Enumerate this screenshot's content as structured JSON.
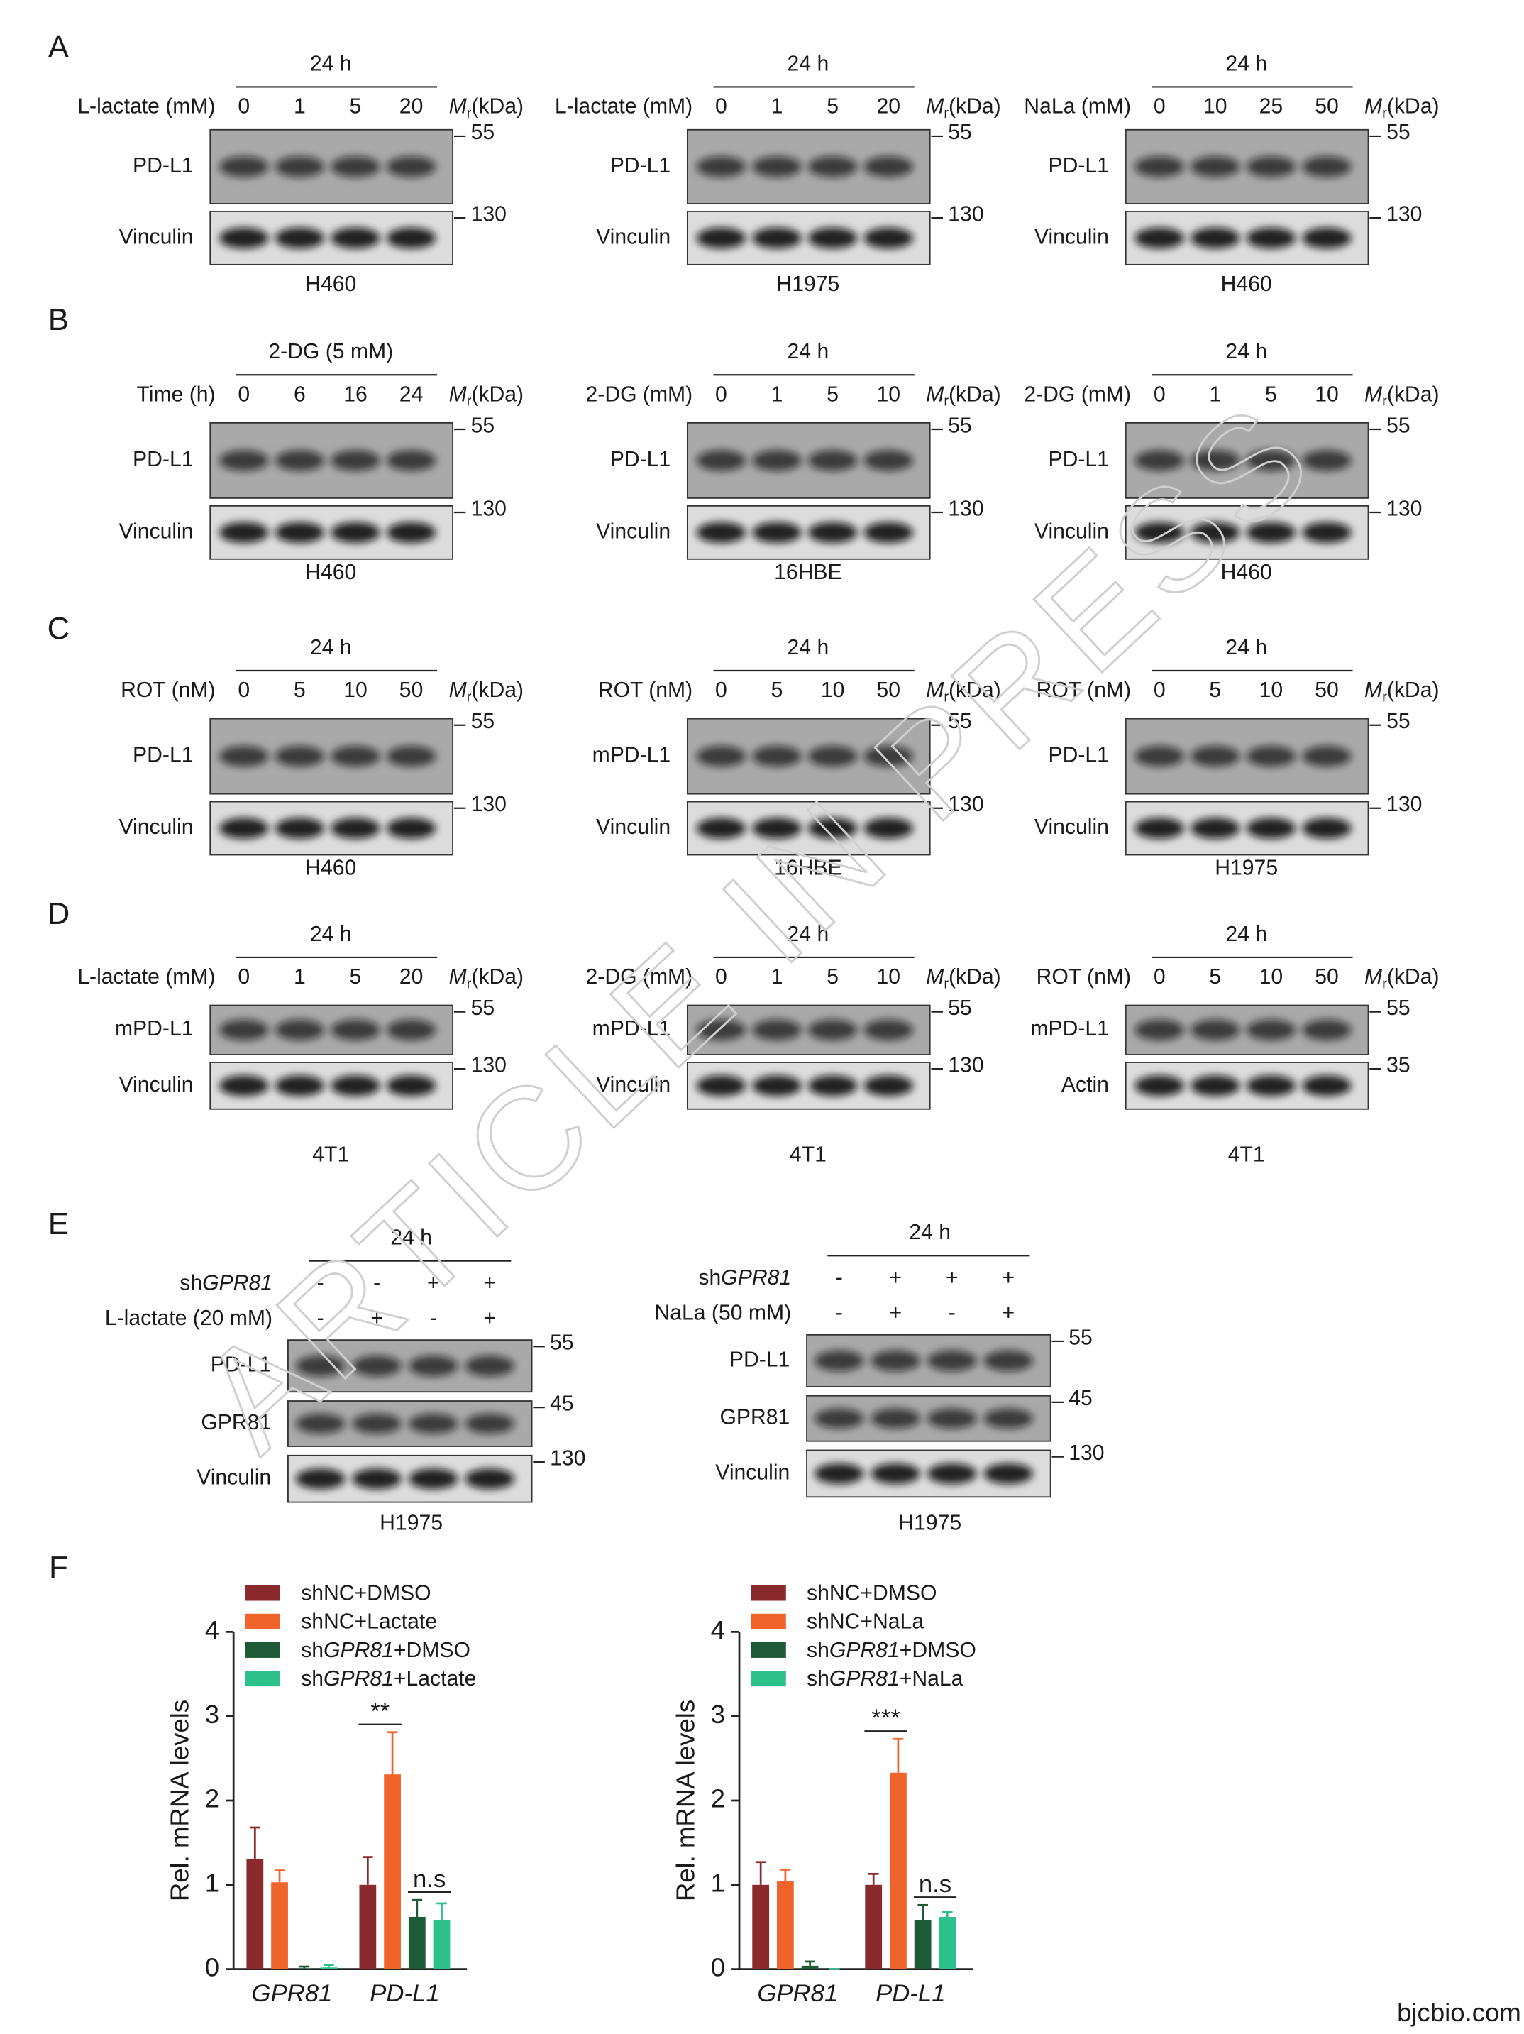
{
  "watermark": "ARTICLE IN PRESS",
  "footer": "bjcbio.com",
  "mr": {
    "symbol": "M",
    "sub": "r",
    "unit": "(kDa)"
  },
  "panels": [
    {
      "letter": "A",
      "blots": [
        {
          "header": "24 h",
          "condition": "L-lactate (mM)",
          "lanes": [
            "0",
            "1",
            "5",
            "20"
          ],
          "rows": [
            {
              "label": "PD-L1",
              "marker": "55"
            },
            {
              "label": "Vinculin",
              "marker": "130"
            }
          ],
          "cell_line": "H460"
        },
        {
          "header": "24 h",
          "condition": "L-lactate (mM)",
          "lanes": [
            "0",
            "1",
            "5",
            "20"
          ],
          "rows": [
            {
              "label": "PD-L1",
              "marker": "55"
            },
            {
              "label": "Vinculin",
              "marker": "130"
            }
          ],
          "cell_line": "H1975"
        },
        {
          "header": "24 h",
          "condition": "NaLa (mM)",
          "lanes": [
            "0",
            "10",
            "25",
            "50"
          ],
          "rows": [
            {
              "label": "PD-L1",
              "marker": "55"
            },
            {
              "label": "Vinculin",
              "marker": "130"
            }
          ],
          "cell_line": "H460"
        }
      ]
    },
    {
      "letter": "B",
      "blots": [
        {
          "header": "2-DG (5 mM)",
          "condition": "Time (h)",
          "lanes": [
            "0",
            "6",
            "16",
            "24"
          ],
          "rows": [
            {
              "label": "PD-L1",
              "marker": "55"
            },
            {
              "label": "Vinculin",
              "marker": "130"
            }
          ],
          "cell_line": "H460"
        },
        {
          "header": "24 h",
          "condition": "2-DG (mM)",
          "lanes": [
            "0",
            "1",
            "5",
            "10"
          ],
          "rows": [
            {
              "label": "PD-L1",
              "marker": "55"
            },
            {
              "label": "Vinculin",
              "marker": "130"
            }
          ],
          "cell_line": "16HBE"
        },
        {
          "header": "24 h",
          "condition": "2-DG (mM)",
          "lanes": [
            "0",
            "1",
            "5",
            "10"
          ],
          "rows": [
            {
              "label": "PD-L1",
              "marker": "55"
            },
            {
              "label": "Vinculin",
              "marker": "130"
            }
          ],
          "cell_line": "H460"
        }
      ]
    },
    {
      "letter": "C",
      "blots": [
        {
          "header": "24 h",
          "condition": "ROT (nM)",
          "lanes": [
            "0",
            "5",
            "10",
            "50"
          ],
          "rows": [
            {
              "label": "PD-L1",
              "marker": "55"
            },
            {
              "label": "Vinculin",
              "marker": "130"
            }
          ],
          "cell_line": "H460"
        },
        {
          "header": "24 h",
          "condition": "ROT (nM)",
          "lanes": [
            "0",
            "5",
            "10",
            "50"
          ],
          "rows": [
            {
              "label": "mPD-L1",
              "marker": "55"
            },
            {
              "label": "Vinculin",
              "marker": "130"
            }
          ],
          "cell_line": "16HBE"
        },
        {
          "header": "24 h",
          "condition": "ROT (nM)",
          "lanes": [
            "0",
            "5",
            "10",
            "50"
          ],
          "rows": [
            {
              "label": "PD-L1",
              "marker": "55"
            },
            {
              "label": "Vinculin",
              "marker": "130"
            }
          ],
          "cell_line": "H1975"
        }
      ]
    },
    {
      "letter": "D",
      "blots": [
        {
          "header": "24 h",
          "condition": "L-lactate (mM)",
          "lanes": [
            "0",
            "1",
            "5",
            "20"
          ],
          "rows": [
            {
              "label": "mPD-L1",
              "marker": "55"
            },
            {
              "label": "Vinculin",
              "marker": "130"
            }
          ],
          "cell_line": "4T1"
        },
        {
          "header": "24 h",
          "condition": "2-DG (mM)",
          "lanes": [
            "0",
            "1",
            "5",
            "10"
          ],
          "rows": [
            {
              "label": "mPD-L1",
              "marker": "55"
            },
            {
              "label": "Vinculin",
              "marker": "130"
            }
          ],
          "cell_line": "4T1"
        },
        {
          "header": "24 h",
          "condition": "ROT (nM)",
          "lanes": [
            "0",
            "5",
            "10",
            "50"
          ],
          "rows": [
            {
              "label": "mPD-L1",
              "marker": "55"
            },
            {
              "label": "Actin",
              "marker": "35"
            }
          ],
          "cell_line": "4T1"
        }
      ]
    }
  ],
  "panel_e": {
    "letter": "E",
    "blots": [
      {
        "header": "24 h",
        "treatments": [
          {
            "label": "shGPR81",
            "signs": [
              "-",
              "-",
              "+",
              "+"
            ]
          },
          {
            "label": "L-lactate (20 mM)",
            "signs": [
              "-",
              "+",
              "-",
              "+"
            ]
          }
        ],
        "rows": [
          {
            "label": "PD-L1",
            "marker": "55"
          },
          {
            "label": "GPR81",
            "marker": "45"
          },
          {
            "label": "Vinculin",
            "marker": "130"
          }
        ],
        "cell_line": "H1975"
      },
      {
        "header": "24 h",
        "treatments": [
          {
            "label": "shGPR81",
            "signs": [
              "-",
              "+",
              "+",
              "+"
            ]
          },
          {
            "label": "NaLa (50 mM)",
            "signs": [
              "-",
              "+",
              "-",
              "+"
            ]
          }
        ],
        "rows": [
          {
            "label": "PD-L1",
            "marker": "55"
          },
          {
            "label": "GPR81",
            "marker": "45"
          },
          {
            "label": "Vinculin",
            "marker": "130"
          }
        ],
        "cell_line": "H1975"
      }
    ]
  },
  "panel_f": {
    "letter": "F"
  },
  "chart_data": [
    {
      "type": "bar",
      "ylabel": "Rel. mRNA levels",
      "categories": [
        "GPR81",
        "PD-L1"
      ],
      "series": [
        {
          "name": "shNC+DMSO",
          "color": "#8b2a2c",
          "values": [
            1.31,
            1.0
          ],
          "errors": [
            0.37,
            0.33
          ]
        },
        {
          "name": "shNC+Lactate",
          "color": "#f0642c",
          "values": [
            1.03,
            2.31
          ],
          "errors": [
            0.14,
            0.5
          ]
        },
        {
          "name": "shGPR81+DMSO",
          "color": "#1f5a36",
          "values": [
            0.01,
            0.62
          ],
          "errors": [
            0.02,
            0.2
          ]
        },
        {
          "name": "shGPR81+Lactate",
          "color": "#2cc08b",
          "values": [
            0.02,
            0.58
          ],
          "errors": [
            0.03,
            0.2
          ]
        }
      ],
      "ylim": [
        0,
        4
      ],
      "yticks": [
        0,
        1,
        2,
        3,
        4
      ],
      "annotations": [
        "**",
        "n.s"
      ]
    },
    {
      "type": "bar",
      "ylabel": "Rel. mRNA levels",
      "categories": [
        "GPR81",
        "PD-L1"
      ],
      "series": [
        {
          "name": "shNC+DMSO",
          "color": "#8b2a2c",
          "values": [
            1.0,
            1.0
          ],
          "errors": [
            0.27,
            0.13
          ]
        },
        {
          "name": "shNC+NaLa",
          "color": "#f0642c",
          "values": [
            1.04,
            2.33
          ],
          "errors": [
            0.14,
            0.4
          ]
        },
        {
          "name": "shGPR81+DMSO",
          "color": "#1f5a36",
          "values": [
            0.04,
            0.58
          ],
          "errors": [
            0.05,
            0.18
          ]
        },
        {
          "name": "shGPR81+NaLa",
          "color": "#2cc08b",
          "values": [
            0.0,
            0.62
          ],
          "errors": [
            0.0,
            0.06
          ]
        }
      ],
      "ylim": [
        0,
        4
      ],
      "yticks": [
        0,
        1,
        2,
        3,
        4
      ],
      "annotations": [
        "***",
        "n.s"
      ]
    }
  ]
}
